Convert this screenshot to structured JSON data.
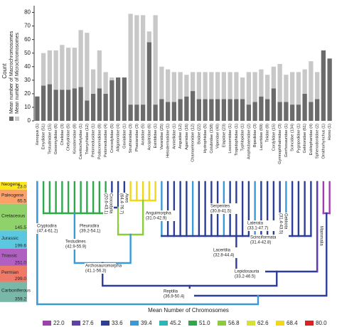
{
  "chart_data": {
    "type": "bar",
    "stacked": true,
    "y_label": "Count",
    "categories": [
      "Xenopus (1)",
      "Emydidae (51)",
      "Testudinidae (15)",
      "Geoemydidae (6)",
      "Chelidae (3)",
      "Chelydridae (5)",
      "Kinosternidae (8)",
      "Carettochelyidae (1)",
      "Trionychidae (12)",
      "Pelomedusidae (1)",
      "Podocnemididae (8)",
      "Pelomedusidae (4)",
      "Crocodylidae (5)",
      "Alligatoridae (4)",
      "Gavialidae (1)",
      "Struthionidae (3)",
      "Phasianidae (3)",
      "Anatidae (5)",
      "Accipitridae (6)",
      "Estrildidae (1)",
      "Varanidae (25)",
      "Helodermatidae (1)",
      "Anniellidae (1)",
      "Anguidae (12)",
      "Agamidae (16)",
      "Chamaeleonidae (12)",
      "Boidae (22)",
      "Hydrophiidae (5)",
      "Colubridae (158)",
      "Viperidae (40)",
      "Elapidae (23)",
      "Loxocemidae (1)",
      "Tropidophiidae (1)",
      "Typhlopidae (1)",
      "Amphisbaenidae (2)",
      "Bipedidae (3)",
      "Lacertidae (69)",
      "Teiidae (8)",
      "Cordylidae (15)",
      "Gymnophthalmidae (3)",
      "Gerrhosauridae (1)",
      "Scincidae (134)",
      "Pygopodidae (1)",
      "Gekkonidae (61)",
      "Eublepharidae (4)",
      "Sphenodontidae (2)",
      "Ornithorhynchus (1)",
      "Homo (1)"
    ],
    "series": [
      {
        "name": "Mean number of Macrochromosomes",
        "color": "#6b6b6b",
        "values": [
          18,
          26,
          27,
          23,
          23,
          23,
          24,
          25,
          15,
          20,
          24,
          20,
          30,
          32,
          32,
          12,
          12,
          12,
          58,
          12,
          16,
          14,
          14,
          16,
          18,
          22,
          16,
          16,
          16,
          16,
          16,
          16,
          16,
          16,
          12,
          14,
          18,
          16,
          24,
          14,
          14,
          12,
          12,
          20,
          14,
          16,
          52,
          46
        ]
      },
      {
        "name": "Mean number of Microchromosomes",
        "color": "#c8c8c8",
        "values": [
          0,
          24,
          25,
          29,
          33,
          31,
          30,
          42,
          50,
          18,
          28,
          16,
          2,
          0,
          0,
          67,
          66,
          66,
          8,
          66,
          24,
          24,
          22,
          20,
          16,
          14,
          20,
          20,
          20,
          20,
          20,
          20,
          20,
          16,
          24,
          22,
          20,
          18,
          16,
          28,
          20,
          24,
          24,
          18,
          30,
          20,
          0,
          0
        ]
      }
    ],
    "ylim": [
      0,
      85
    ],
    "yticks": [
      0,
      10,
      20,
      30,
      40,
      50,
      60,
      70,
      80
    ]
  },
  "timescale": [
    {
      "period": "Neogene",
      "age": "23.0",
      "color": "#ffe619"
    },
    {
      "period": "Paleogene",
      "age": "65.5",
      "color": "#fda06a"
    },
    {
      "period": "Cretaceous",
      "age": "145.5",
      "color": "#8fd16a"
    },
    {
      "period": "Jurassic",
      "age": "199.6",
      "color": "#5cc8e0"
    },
    {
      "period": "Triassic",
      "age": "251.0",
      "color": "#b060c0"
    },
    {
      "period": "Permian",
      "age": "299.0",
      "color": "#f07a68"
    },
    {
      "period": "Carboniferous",
      "age": "359.2",
      "color": "#78b8a8"
    }
  ],
  "clades": [
    {
      "name": "Cryptodira",
      "range": "(47.4-61.2)"
    },
    {
      "name": "Pleurodira",
      "range": "(39.2-54.1)"
    },
    {
      "name": "Testudines",
      "range": "(42.9-55.9)"
    },
    {
      "name": "Crocodylia",
      "range": "(20.6-43.1)"
    },
    {
      "name": "Aves",
      "range": "(64.4-76.7)"
    },
    {
      "name": "Archosauromorpha",
      "range": "(41.1-56.3)"
    },
    {
      "name": "Anguimorpha",
      "range": "(31.0-42.9)"
    },
    {
      "name": "Serpentes",
      "range": "(30.8-41.5)"
    },
    {
      "name": "Laterata",
      "range": "(33.1-47.7)"
    },
    {
      "name": "Scinciformata",
      "range": "(31.4-42.8)"
    },
    {
      "name": "Lacertilia",
      "range": "(32.8-44.4)"
    },
    {
      "name": "Lepidosauria",
      "range": "(33.2-46.5)"
    },
    {
      "name": "Gekkota",
      "range": "(31.4-43.5)"
    },
    {
      "name": "Mammalia",
      "range": null
    },
    {
      "name": "Reptilia",
      "range": "(36.9-50.4)"
    }
  ],
  "legend": {
    "title": "Mean Number of Chromosomes",
    "items": [
      {
        "label": "22.0",
        "color": "#a040b0"
      },
      {
        "label": "27.6",
        "color": "#6040a8"
      },
      {
        "label": "33.6",
        "color": "#2c3e98"
      },
      {
        "label": "39.4",
        "color": "#3a9ad8"
      },
      {
        "label": "45.2",
        "color": "#28b8b8"
      },
      {
        "label": "51.0",
        "color": "#2ea84a"
      },
      {
        "label": "56.8",
        "color": "#8acc3a"
      },
      {
        "label": "62.6",
        "color": "#d8e030"
      },
      {
        "label": "68.4",
        "color": "#f0d818"
      },
      {
        "label": "80.0",
        "color": "#e02020"
      }
    ]
  }
}
